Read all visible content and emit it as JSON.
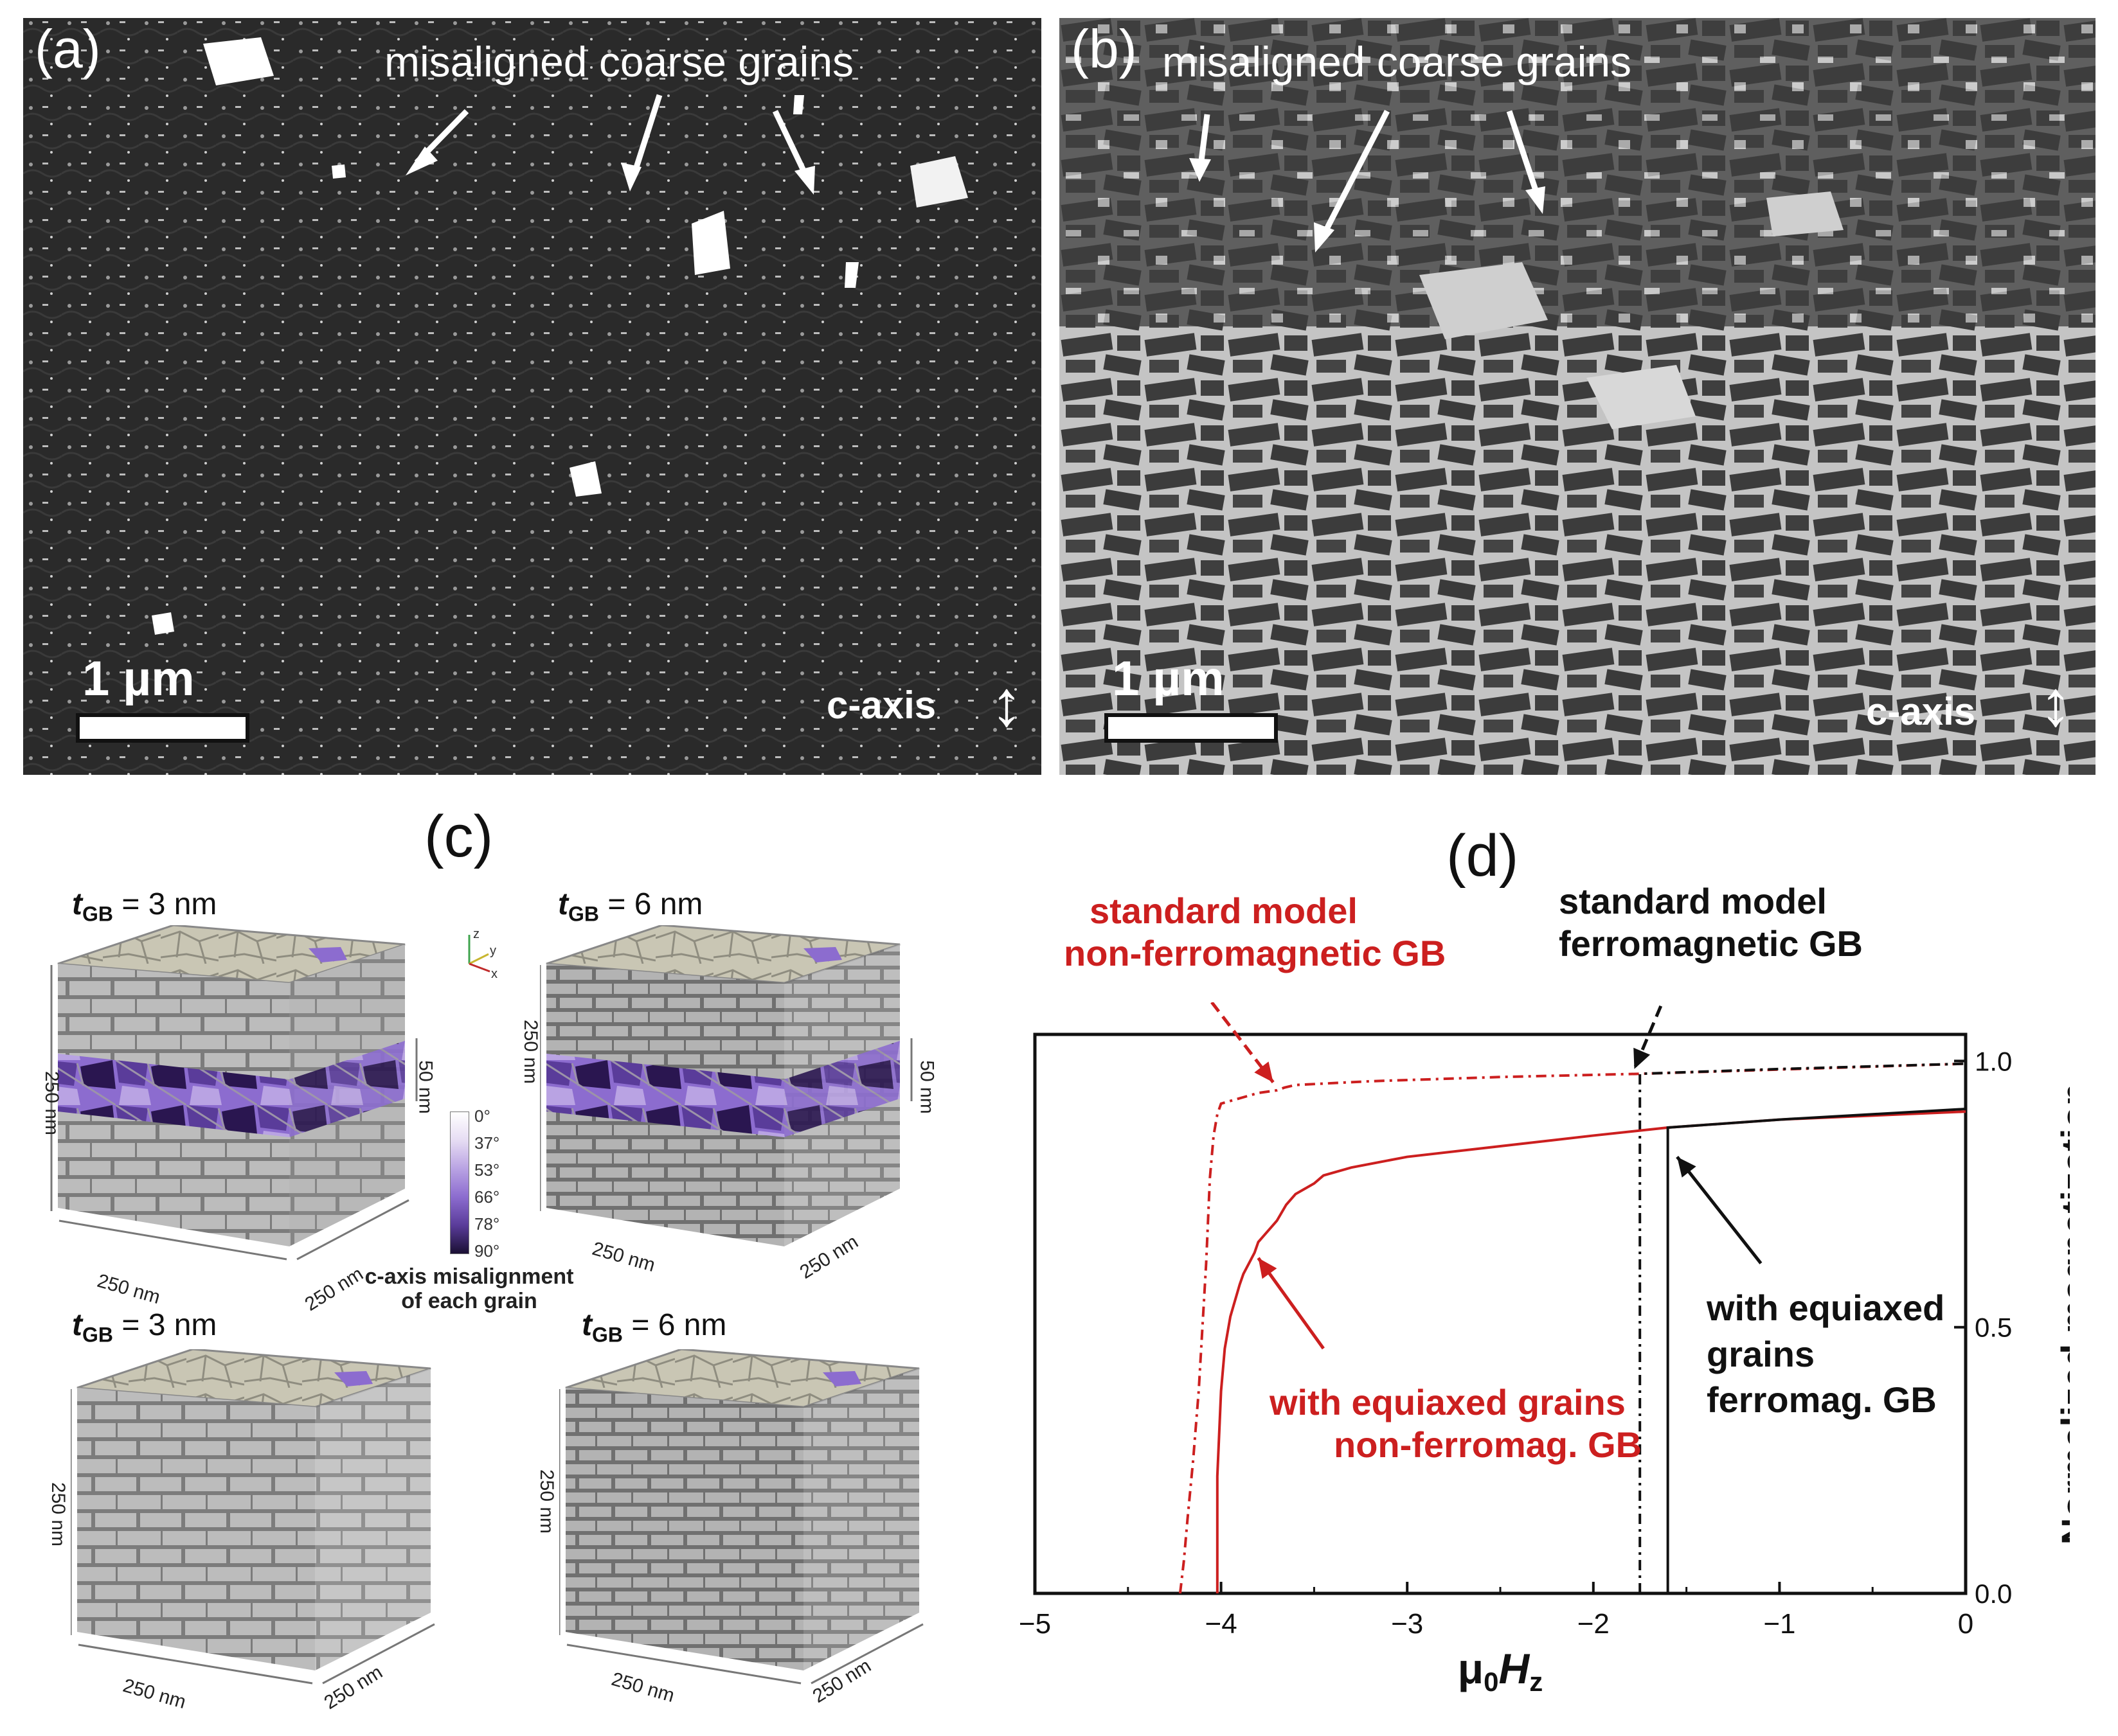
{
  "panel_a": {
    "label": "(a)",
    "annotation": "misaligned coarse grains",
    "scale_bar": "1 µm",
    "axis_label": "c-axis",
    "axis_arrow": "↕"
  },
  "panel_b": {
    "label": "(b)",
    "annotation": "misaligned coarse grains",
    "scale_bar": "1 µm",
    "axis_label": "c-axis",
    "axis_arrow": "↕"
  },
  "panel_c": {
    "label": "(c)",
    "cubes": [
      {
        "tgb_symbol": "t",
        "tgb_sub": "GB",
        "tgb_value": "= 3 nm",
        "height": "250 nm",
        "width": "250 nm",
        "depth": "250 nm",
        "band": "50 nm"
      },
      {
        "tgb_symbol": "t",
        "tgb_sub": "GB",
        "tgb_value": "= 6 nm",
        "height": "250 nm",
        "width": "250 nm",
        "depth": "250 nm",
        "band": "50 nm"
      },
      {
        "tgb_symbol": "t",
        "tgb_sub": "GB",
        "tgb_value": "= 3 nm",
        "height": "250 nm",
        "width": "250 nm",
        "depth": "250 nm"
      },
      {
        "tgb_symbol": "t",
        "tgb_sub": "GB",
        "tgb_value": "= 6 nm",
        "height": "250 nm",
        "width": "250 nm",
        "depth": "250 nm"
      }
    ],
    "colorbar": {
      "ticks": [
        "0°",
        "37°",
        "53°",
        "66°",
        "78°",
        "90°"
      ],
      "title_line1": "c-axis misalignment",
      "title_line2": "of each grain",
      "colors": [
        "#ffffff",
        "#e6dcf3",
        "#b9a3e3",
        "#8c6ccf",
        "#5a3c9a",
        "#1a0f33"
      ]
    },
    "axes_triad": {
      "z": "z",
      "y": "y",
      "x": "x"
    },
    "grain_color": "#8c6ccf"
  },
  "panel_d": {
    "label": "(d)",
    "annotations": {
      "red_top_line1": "standard model",
      "red_top_line2": "non-ferromagnetic GB",
      "black_top_line1": "standard model",
      "black_top_line2": "ferromagnetic GB",
      "red_bottom_line1": "with equiaxed grains",
      "red_bottom_line2": "non-ferromag. GB",
      "black_bottom_line1": "with equiaxed",
      "black_bottom_line2": "grains",
      "black_bottom_line3": "ferromag. GB"
    },
    "colors": {
      "red": "#cc1f1f",
      "black": "#111111"
    }
  },
  "chart_data": {
    "type": "line",
    "title": "",
    "xlabel": "μ0Hz",
    "ylabel": "Normalized magnetization",
    "xlim": [
      -5,
      0
    ],
    "ylim": [
      0,
      1.05
    ],
    "xticks": [
      -5,
      -4,
      -3,
      -2,
      -1,
      0
    ],
    "yticks": [
      0.0,
      0.5,
      1.0
    ],
    "ytick_labels": [
      "0.0",
      "0.5",
      "1.0"
    ],
    "xtick_labels": [
      "−5",
      "−4",
      "−3",
      "−2",
      "−1",
      "0"
    ],
    "series": [
      {
        "name": "standard model non-ferromagnetic GB",
        "color": "#cc1f1f",
        "style": "dashdot",
        "x": [
          -4.22,
          -4.2,
          -4.18,
          -4.15,
          -4.12,
          -4.1,
          -4.08,
          -4.06,
          -4.04,
          -4.02,
          -4.0,
          -3.9,
          -3.8,
          -3.7,
          -3.66,
          -3.6,
          -3.2,
          -2.5,
          -1.75,
          -1.0,
          0.0
        ],
        "y": [
          0.0,
          0.06,
          0.14,
          0.25,
          0.38,
          0.5,
          0.62,
          0.78,
          0.86,
          0.9,
          0.92,
          0.93,
          0.94,
          0.945,
          0.95,
          0.955,
          0.962,
          0.97,
          0.976,
          0.984,
          0.995
        ]
      },
      {
        "name": "standard model ferromagnetic GB",
        "color": "#111111",
        "style": "dashdot",
        "x": [
          -1.75,
          -1.75,
          -1.0,
          0.0
        ],
        "y": [
          0.0,
          0.976,
          0.985,
          0.995
        ]
      },
      {
        "name": "with equiaxed grains non-ferromag. GB",
        "color": "#cc1f1f",
        "style": "solid",
        "x": [
          -4.02,
          -4.02,
          -4.0,
          -3.98,
          -3.95,
          -3.9,
          -3.88,
          -3.85,
          -3.82,
          -3.8,
          -3.75,
          -3.7,
          -3.65,
          -3.6,
          -3.55,
          -3.5,
          -3.45,
          -3.4,
          -3.3,
          -3.0,
          -2.5,
          -2.0,
          -1.6,
          -1.0,
          0.0
        ],
        "y": [
          0.0,
          0.22,
          0.38,
          0.46,
          0.52,
          0.58,
          0.6,
          0.62,
          0.64,
          0.66,
          0.68,
          0.7,
          0.73,
          0.75,
          0.76,
          0.77,
          0.785,
          0.79,
          0.8,
          0.82,
          0.84,
          0.86,
          0.875,
          0.89,
          0.905
        ]
      },
      {
        "name": "with equiaxed grains ferromag. GB",
        "color": "#111111",
        "style": "solid",
        "x": [
          -1.6,
          -1.6,
          -1.0,
          0.0
        ],
        "y": [
          0.0,
          0.875,
          0.89,
          0.91
        ]
      }
    ]
  }
}
